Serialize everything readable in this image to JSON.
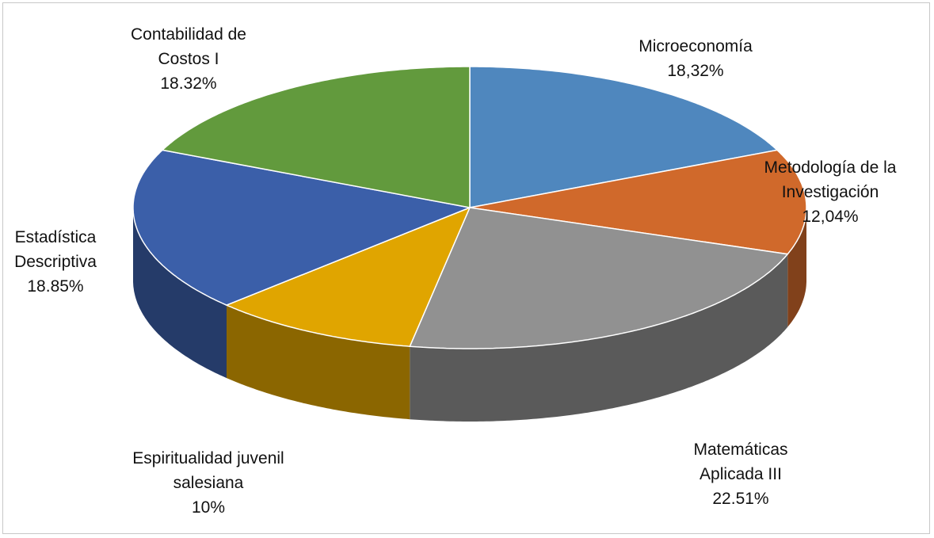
{
  "chart_data": {
    "type": "pie3d",
    "categories": [
      "Microeconomía",
      "Metodología de la Investigación",
      "Matemáticas Aplicada III",
      "Espiritualidad juvenil salesiana",
      "Estadística Descriptiva",
      "Contabilidad de Costos I"
    ],
    "values": [
      18.32,
      12.04,
      22.51,
      10,
      18.85,
      18.32
    ],
    "value_labels": [
      "18,32%",
      "12,04%",
      "22.51%",
      "10%",
      "18.85%",
      "18.32%"
    ],
    "colors": [
      "#4f87be",
      "#d0692b",
      "#919191",
      "#e0a500",
      "#3b5fa9",
      "#629a3d"
    ]
  }
}
